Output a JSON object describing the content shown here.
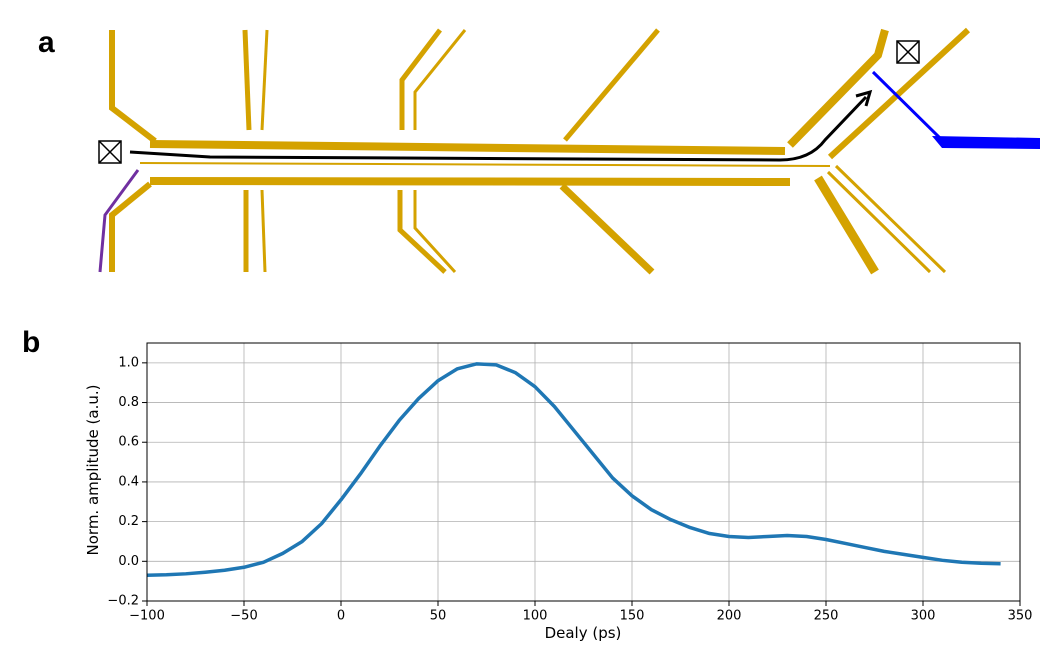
{
  "panel_labels": [
    "a",
    "b"
  ],
  "chart_data": {
    "type": "line",
    "x_label": "Dealy (ps)",
    "y_label": "Norm. amplitude (a.u.)",
    "x": [
      -100,
      -90,
      -80,
      -70,
      -60,
      -50,
      -40,
      -30,
      -20,
      -10,
      0,
      10,
      20,
      30,
      40,
      50,
      60,
      70,
      80,
      90,
      100,
      110,
      120,
      130,
      140,
      150,
      160,
      170,
      180,
      190,
      200,
      210,
      220,
      230,
      240,
      250,
      260,
      270,
      280,
      290,
      300,
      310,
      320,
      330,
      340
    ],
    "values": [
      -0.07,
      -0.068,
      -0.063,
      -0.055,
      -0.045,
      -0.03,
      -0.005,
      0.04,
      0.1,
      0.19,
      0.31,
      0.44,
      0.58,
      0.71,
      0.82,
      0.91,
      0.97,
      0.995,
      0.99,
      0.95,
      0.88,
      0.78,
      0.66,
      0.54,
      0.42,
      0.33,
      0.26,
      0.21,
      0.17,
      0.14,
      0.125,
      0.12,
      0.125,
      0.13,
      0.125,
      0.11,
      0.09,
      0.07,
      0.05,
      0.035,
      0.02,
      0.005,
      -0.005,
      -0.01,
      -0.012
    ],
    "color": "#1f77b4",
    "xlim": [
      -100,
      350
    ],
    "xticks": [
      {
        "value": -100,
        "label": "−100"
      },
      {
        "value": -50,
        "label": "−50"
      },
      0,
      50,
      100,
      150,
      200,
      250,
      300,
      350
    ],
    "ylim": [
      -0.2,
      1.1
    ],
    "yticks": [
      {
        "value": -0.2,
        "label": "−0.2"
      },
      {
        "value": 0,
        "label": "0.0"
      },
      0.2,
      0.4,
      0.6,
      0.8,
      {
        "value": 1,
        "label": "1.0"
      }
    ],
    "grid": true
  }
}
